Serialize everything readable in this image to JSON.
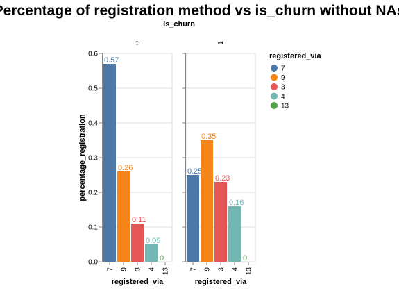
{
  "chart_data": {
    "type": "bar",
    "title": "Percentage of registration method vs is_churn without NAs",
    "facet_field": "is_churn",
    "xlabel": "registered_via",
    "ylabel": "percentage_registration",
    "ylim": [
      0,
      0.6
    ],
    "yticks": [
      "0.0",
      "0.1",
      "0.2",
      "0.3",
      "0.4",
      "0.5",
      "0.6"
    ],
    "grid": true,
    "categories": [
      "7",
      "9",
      "3",
      "4",
      "13"
    ],
    "colors": [
      "#4c78a8",
      "#f58518",
      "#e45756",
      "#72b7b2",
      "#54a24b"
    ],
    "facets": [
      {
        "name": "0",
        "values": [
          0.57,
          0.26,
          0.11,
          0.05,
          0
        ],
        "labels": [
          "0.57",
          "0.26",
          "0.11",
          "0.05",
          "0"
        ]
      },
      {
        "name": "1",
        "values": [
          0.25,
          0.35,
          0.23,
          0.16,
          0
        ],
        "labels": [
          "0.25",
          "0.35",
          "0.23",
          "0.16",
          "0"
        ]
      }
    ],
    "legend": {
      "title": "registered_via",
      "placement": "right",
      "items": [
        "7",
        "9",
        "3",
        "4",
        "13"
      ]
    }
  }
}
